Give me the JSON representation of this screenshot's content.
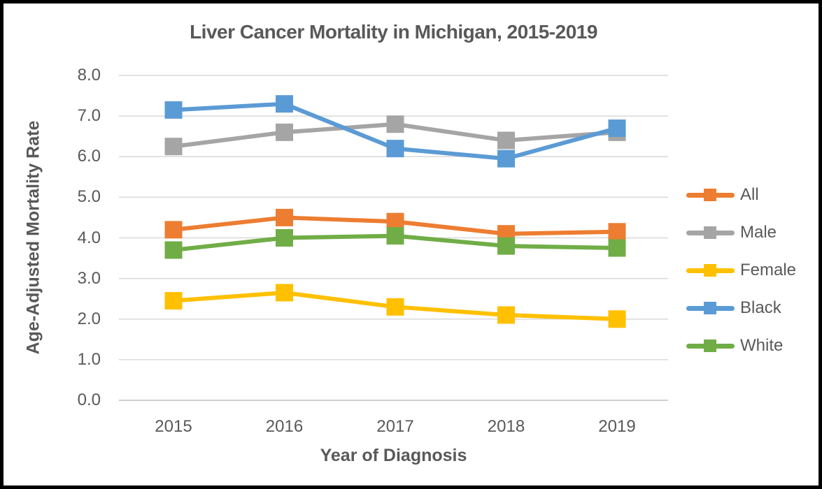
{
  "chart_data": {
    "type": "line",
    "title": "Liver Cancer Mortality in Michigan, 2015-2019",
    "xlabel": "Year of Diagnosis",
    "ylabel": "Age-Adjusted Mortality Rate",
    "categories": [
      "2015",
      "2016",
      "2017",
      "2018",
      "2019"
    ],
    "series": [
      {
        "name": "All",
        "color": "#ED7D31",
        "values": [
          4.2,
          4.5,
          4.4,
          4.1,
          4.15
        ]
      },
      {
        "name": "Male",
        "color": "#A5A5A5",
        "values": [
          6.25,
          6.6,
          6.8,
          6.4,
          6.6
        ]
      },
      {
        "name": "Female",
        "color": "#FFC000",
        "values": [
          2.45,
          2.65,
          2.3,
          2.1,
          2.0
        ]
      },
      {
        "name": "Black",
        "color": "#5B9BD5",
        "values": [
          7.15,
          7.3,
          6.2,
          5.95,
          6.7
        ]
      },
      {
        "name": "White",
        "color": "#70AD47",
        "values": [
          3.7,
          4.0,
          4.05,
          3.8,
          3.75
        ]
      }
    ],
    "ylim": [
      0.0,
      8.0
    ],
    "ytick_labels": [
      "0.0",
      "1.0",
      "2.0",
      "3.0",
      "4.0",
      "5.0",
      "6.0",
      "7.0",
      "8.0"
    ],
    "grid": true,
    "legend_position": "right",
    "marker": "square"
  },
  "style": {
    "text_color": "#595959",
    "gridline_color": "#D9D9D9",
    "axis_line_color": "#BFBFBF",
    "background": "#FFFFFF",
    "border_color": "#000000"
  }
}
